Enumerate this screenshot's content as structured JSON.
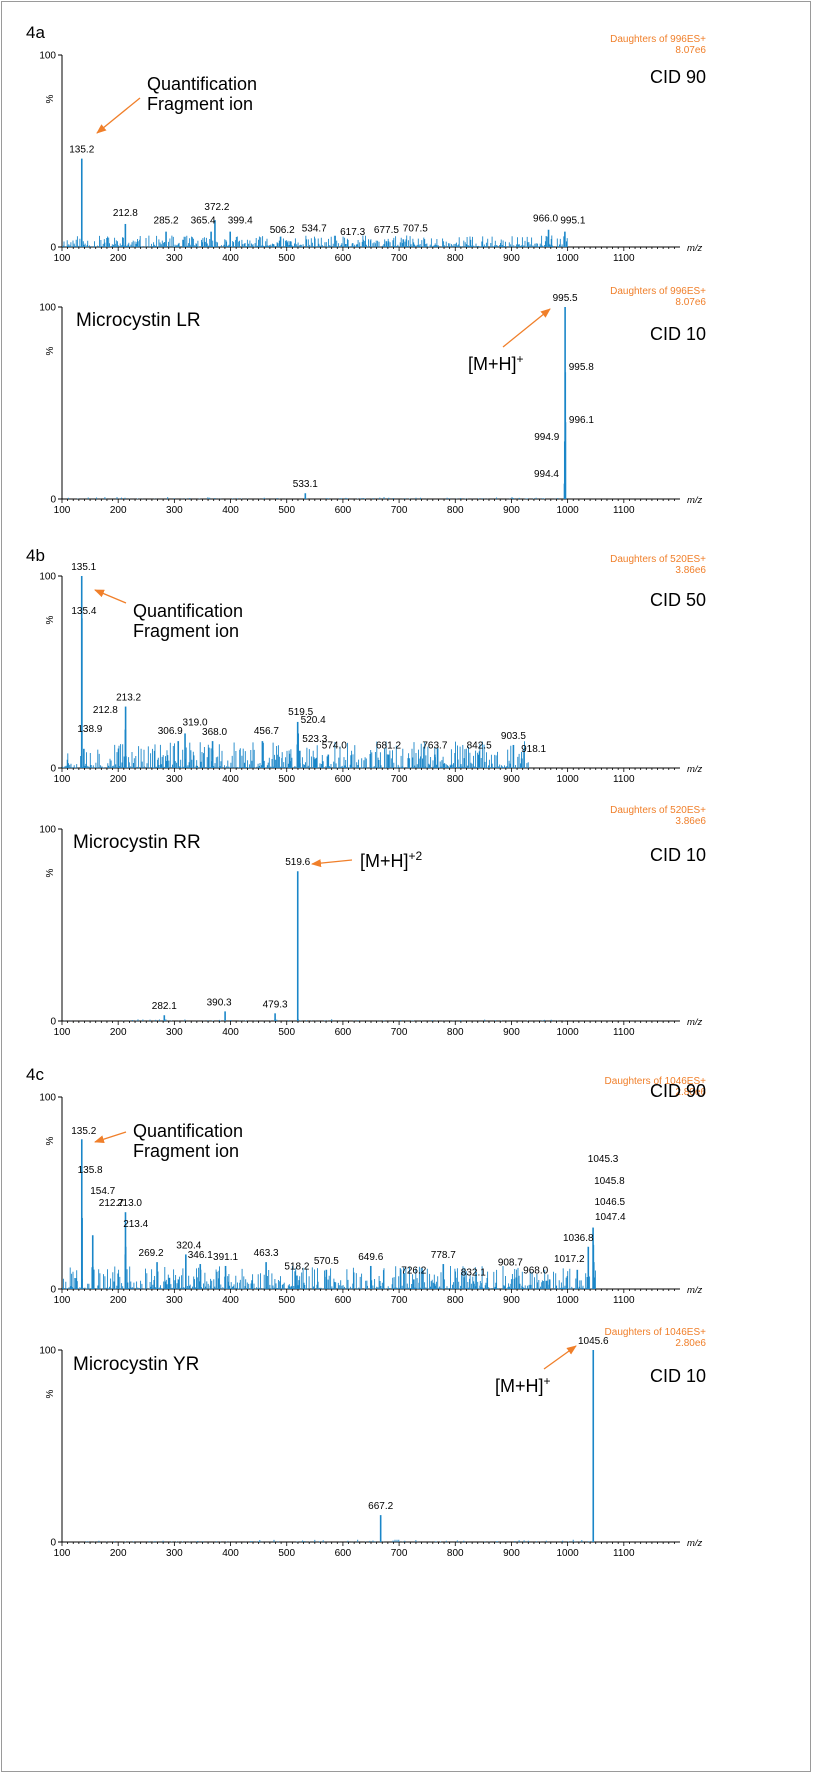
{
  "figure": {
    "section_labels": [
      "4a",
      "4b",
      "4c"
    ]
  },
  "colors": {
    "spectrum": "#1a86c8",
    "annotation": "#f07f2a",
    "text": "#000000"
  },
  "chart_data": [
    {
      "type": "bar",
      "section": "4a",
      "source_line1": "Daughters of 996ES+",
      "source_line2": "8.07e6",
      "cid": "CID 90",
      "title": "",
      "annotation": {
        "line1": "Quantification",
        "line2": "Fragment ion",
        "superscript": "",
        "arrow_from": [
          1120,
          83
        ],
        "arrow_to": [
          1120,
          62
        ],
        "text_at": [
          1170,
          90
        ]
      },
      "xlabel": "m/z",
      "ylabel": "%",
      "xlim": [
        100,
        1200
      ],
      "ylim": [
        0,
        100
      ],
      "xticks": [
        100,
        200,
        300,
        400,
        500,
        600,
        700,
        800,
        900,
        1000,
        1100
      ],
      "yticks": [
        0,
        100
      ],
      "peaks": [
        {
          "mz": 135.2,
          "intensity": 46,
          "label": "135.2"
        },
        {
          "mz": 212.8,
          "intensity": 12,
          "label": "212.8"
        },
        {
          "mz": 285.2,
          "intensity": 8,
          "label": "285.2"
        },
        {
          "mz": 365.4,
          "intensity": 8,
          "label": "365.4"
        },
        {
          "mz": 372.2,
          "intensity": 14,
          "label": "372.2"
        },
        {
          "mz": 399.4,
          "intensity": 8,
          "label": "399.4"
        },
        {
          "mz": 506.2,
          "intensity": 3,
          "label": "506.2"
        },
        {
          "mz": 534.7,
          "intensity": 4,
          "label": "534.7"
        },
        {
          "mz": 617.3,
          "intensity": 2,
          "label": "617.3"
        },
        {
          "mz": 677.5,
          "intensity": 3,
          "label": "677.5"
        },
        {
          "mz": 707.5,
          "intensity": 4,
          "label": "707.5"
        },
        {
          "mz": 966.0,
          "intensity": 9,
          "label": "966.0"
        },
        {
          "mz": 995.1,
          "intensity": 8,
          "label": "995.1"
        }
      ],
      "noise": {
        "from": 100,
        "to": 1000,
        "max": 6,
        "dense": true,
        "seed": 11
      }
    },
    {
      "type": "bar",
      "section": "",
      "source_line1": "Daughters of 996ES+",
      "source_line2": "8.07e6",
      "cid": "CID 10",
      "title": "Microcystin LR",
      "annotation": {
        "line1": "[M+H]",
        "line2": "",
        "superscript": "+",
        "arrow_from": [
          930,
          360
        ],
        "arrow_to": [
          980,
          300
        ],
        "text_at": [
          880,
          370
        ]
      },
      "xlabel": "m/z",
      "ylabel": "%",
      "xlim": [
        100,
        1200
      ],
      "ylim": [
        0,
        100
      ],
      "xticks": [
        100,
        200,
        300,
        400,
        500,
        600,
        700,
        800,
        900,
        1000,
        1100
      ],
      "yticks": [
        0,
        100
      ],
      "peaks": [
        {
          "mz": 995.5,
          "intensity": 100,
          "label": "995.5"
        },
        {
          "mz": 995.8,
          "intensity": 66,
          "label": "995.8"
        },
        {
          "mz": 996.1,
          "intensity": 40,
          "label": "996.1"
        },
        {
          "mz": 994.9,
          "intensity": 30,
          "label": "994.9"
        },
        {
          "mz": 994.4,
          "intensity": 8,
          "label": "994.4"
        },
        {
          "mz": 533.1,
          "intensity": 3,
          "label": "533.1"
        }
      ],
      "noise": {
        "from": 100,
        "to": 1000,
        "max": 1,
        "dense": false,
        "seed": 23
      }
    },
    {
      "type": "bar",
      "section": "4b",
      "source_line1": "Daughters of 520ES+",
      "source_line2": "3.86e6",
      "cid": "CID 50",
      "title": "",
      "annotation": {
        "line1": "Quantification",
        "line2": "Fragment ion",
        "superscript": "",
        "arrow_from": [
          160,
          605
        ],
        "arrow_to": [
          160,
          592
        ],
        "text_at": [
          170,
          612
        ]
      },
      "xlabel": "m/z",
      "ylabel": "%",
      "xlim": [
        100,
        1200
      ],
      "ylim": [
        0,
        100
      ],
      "xticks": [
        100,
        200,
        300,
        400,
        500,
        600,
        700,
        800,
        900,
        1000,
        1100
      ],
      "yticks": [
        0,
        100
      ],
      "peaks": [
        {
          "mz": 135.1,
          "intensity": 100,
          "label": "135.1"
        },
        {
          "mz": 135.4,
          "intensity": 78,
          "label": "135.4"
        },
        {
          "mz": 213.2,
          "intensity": 32,
          "label": "213.2"
        },
        {
          "mz": 212.8,
          "intensity": 20,
          "label": "212.8"
        },
        {
          "mz": 138.9,
          "intensity": 10,
          "label": "138.9"
        },
        {
          "mz": 306.9,
          "intensity": 14,
          "label": "306.9"
        },
        {
          "mz": 319.0,
          "intensity": 18,
          "label": "319.0"
        },
        {
          "mz": 368.0,
          "intensity": 14,
          "label": "368.0"
        },
        {
          "mz": 456.7,
          "intensity": 14,
          "label": "456.7"
        },
        {
          "mz": 519.5,
          "intensity": 24,
          "label": "519.5"
        },
        {
          "mz": 520.4,
          "intensity": 18,
          "label": "520.4"
        },
        {
          "mz": 523.3,
          "intensity": 9,
          "label": "523.3"
        },
        {
          "mz": 574.0,
          "intensity": 7,
          "label": "574.0"
        },
        {
          "mz": 681.2,
          "intensity": 7,
          "label": "681.2"
        },
        {
          "mz": 763.7,
          "intensity": 7,
          "label": "763.7"
        },
        {
          "mz": 842.5,
          "intensity": 7,
          "label": "842.5"
        },
        {
          "mz": 903.5,
          "intensity": 12,
          "label": "903.5"
        },
        {
          "mz": 918.1,
          "intensity": 5,
          "label": "918.1"
        }
      ],
      "noise": {
        "from": 100,
        "to": 930,
        "max": 14,
        "dense": true,
        "seed": 37
      }
    },
    {
      "type": "bar",
      "section": "",
      "source_line1": "Daughters of 520ES+",
      "source_line2": "3.86e6",
      "cid": "CID 10",
      "title": "Microcystin RR",
      "annotation": {
        "line1": "[M+H]",
        "line2": "",
        "superscript": "+2",
        "arrow_from": [
          350,
          866
        ],
        "arrow_to": [
          310,
          866
        ],
        "text_at": [
          360,
          872
        ]
      },
      "xlabel": "m/z",
      "ylabel": "%",
      "xlim": [
        100,
        1200
      ],
      "ylim": [
        0,
        100
      ],
      "xticks": [
        100,
        200,
        300,
        400,
        500,
        600,
        700,
        800,
        900,
        1000,
        1100
      ],
      "yticks": [
        0,
        100
      ],
      "peaks": [
        {
          "mz": 519.6,
          "intensity": 78,
          "label": "519.6"
        },
        {
          "mz": 282.1,
          "intensity": 3,
          "label": "282.1"
        },
        {
          "mz": 390.3,
          "intensity": 5,
          "label": "390.3"
        },
        {
          "mz": 479.3,
          "intensity": 4,
          "label": "479.3"
        }
      ],
      "noise": {
        "from": 100,
        "to": 1000,
        "max": 1,
        "dense": false,
        "seed": 51
      }
    },
    {
      "type": "bar",
      "section": "4c",
      "source_line1": "Daughters of 1046ES+",
      "source_line2": "2.80e6",
      "cid": "CID 90",
      "title": "",
      "annotation": {
        "line1": "Quantification",
        "line2": "Fragment ion",
        "superscript": "",
        "arrow_from": [
          160,
          1150
        ],
        "arrow_to": [
          160,
          1140
        ],
        "text_at": [
          170,
          1158
        ]
      },
      "xlabel": "m/z",
      "ylabel": "%",
      "xlim": [
        100,
        1200
      ],
      "ylim": [
        0,
        100
      ],
      "xticks": [
        100,
        200,
        300,
        400,
        500,
        600,
        700,
        800,
        900,
        1000,
        1100
      ],
      "yticks": [
        0,
        100
      ],
      "peaks": [
        {
          "mz": 135.2,
          "intensity": 78,
          "label": "135.2"
        },
        {
          "mz": 135.8,
          "intensity": 37,
          "label": "135.8"
        },
        {
          "mz": 154.7,
          "intensity": 28,
          "label": "154.7"
        },
        {
          "mz": 212.7,
          "intensity": 18,
          "label": "212.7"
        },
        {
          "mz": 213.0,
          "intensity": 40,
          "label": "213.0"
        },
        {
          "mz": 213.4,
          "intensity": 22,
          "label": "213.4"
        },
        {
          "mz": 269.2,
          "intensity": 14,
          "label": "269.2"
        },
        {
          "mz": 320.4,
          "intensity": 18,
          "label": "320.4"
        },
        {
          "mz": 346.1,
          "intensity": 13,
          "label": "346.1"
        },
        {
          "mz": 391.1,
          "intensity": 12,
          "label": "391.1"
        },
        {
          "mz": 463.3,
          "intensity": 14,
          "label": "463.3"
        },
        {
          "mz": 518.2,
          "intensity": 7,
          "label": "518.2"
        },
        {
          "mz": 570.5,
          "intensity": 10,
          "label": "570.5"
        },
        {
          "mz": 649.6,
          "intensity": 12,
          "label": "649.6"
        },
        {
          "mz": 726.2,
          "intensity": 5,
          "label": "726.2"
        },
        {
          "mz": 778.7,
          "intensity": 13,
          "label": "778.7"
        },
        {
          "mz": 832.1,
          "intensity": 4,
          "label": "832.1"
        },
        {
          "mz": 908.7,
          "intensity": 6,
          "label": "908.7"
        },
        {
          "mz": 968.0,
          "intensity": 5,
          "label": "968.0"
        },
        {
          "mz": 1017.2,
          "intensity": 10,
          "label": "1017.2"
        },
        {
          "mz": 1036.8,
          "intensity": 22,
          "label": "1036.8"
        },
        {
          "mz": 1045.3,
          "intensity": 32,
          "label": "1045.3"
        },
        {
          "mz": 1045.8,
          "intensity": 23,
          "label": "1045.8"
        },
        {
          "mz": 1046.5,
          "intensity": 14,
          "label": "1046.5"
        },
        {
          "mz": 1047.4,
          "intensity": 6,
          "label": "1047.4"
        }
      ],
      "noise": {
        "from": 100,
        "to": 1050,
        "max": 12,
        "dense": true,
        "seed": 67
      }
    },
    {
      "type": "bar",
      "section": "",
      "source_line1": "Daughters of 1046ES+",
      "source_line2": "2.80e6",
      "cid": "CID 10",
      "title": "Microcystin YR",
      "annotation": {
        "line1": "[M+H]",
        "line2": "",
        "superscript": "+",
        "arrow_from": [
          530,
          1350
        ],
        "arrow_to": [
          575,
          1323
        ],
        "text_at": [
          495,
          1380
        ]
      },
      "xlabel": "m/z",
      "ylabel": "%",
      "xlim": [
        100,
        1200
      ],
      "ylim": [
        0,
        100
      ],
      "xticks": [
        100,
        200,
        300,
        400,
        500,
        600,
        700,
        800,
        900,
        1000,
        1100
      ],
      "yticks": [
        0,
        100
      ],
      "peaks": [
        {
          "mz": 1045.6,
          "intensity": 100,
          "label": "1045.6"
        },
        {
          "mz": 667.2,
          "intensity": 14,
          "label": "667.2"
        }
      ],
      "noise": {
        "from": 100,
        "to": 1050,
        "max": 1.2,
        "dense": false,
        "seed": 83
      }
    }
  ]
}
